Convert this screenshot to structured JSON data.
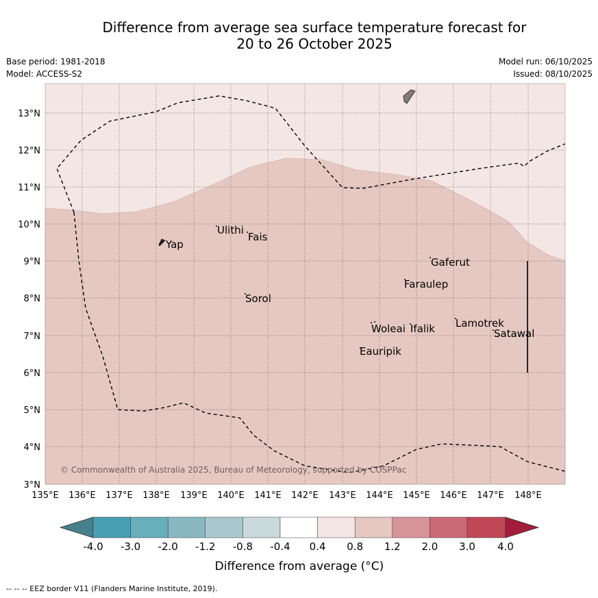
{
  "title_line1": "Difference from average sea surface temperature forecast for",
  "title_line2": "20 to 26 October 2025",
  "meta": {
    "base_period": "Base period: 1981-2018",
    "model": "Model: ACCESS-S2",
    "model_run": "Model run: 06/10/2025",
    "issued": "Issued: 08/10/2025"
  },
  "map": {
    "lon_labels": [
      "135°E",
      "136°E",
      "137°E",
      "138°E",
      "139°E",
      "140°E",
      "141°E",
      "142°E",
      "143°E",
      "144°E",
      "145°E",
      "146°E",
      "147°E",
      "148°E"
    ],
    "lat_labels": [
      "3°N",
      "4°N",
      "5°N",
      "6°N",
      "7°N",
      "8°N",
      "9°N",
      "10°N",
      "11°N",
      "12°N",
      "13°N"
    ],
    "places": {
      "yap": "Yap",
      "ulithi": "Ulithi",
      "fais": "Fais",
      "gaferut": "Gaferut",
      "faraulep": "Faraulep",
      "sorol": "Sorol",
      "lamotrek": "Lamotrek",
      "woleai": "Woleai",
      "ifalik": "Ifalik",
      "satawal": "Satawal",
      "eauripik": "Eauripik"
    },
    "copyright": "© Commonwealth of Australia 2025, Bureau of Meteorology, supported by COSPPac",
    "colors": {
      "anomaly_0_4_to_0_8": "#f4e6e4",
      "anomaly_0_8_to_1_2": "#e6c8c2"
    }
  },
  "colorbar": {
    "ticks": [
      "-4.0",
      "-3.0",
      "-2.0",
      "-1.2",
      "-0.8",
      "-0.4",
      "0.4",
      "0.8",
      "1.2",
      "2.0",
      "3.0",
      "4.0"
    ],
    "label": "Difference from average (°C)",
    "colors": [
      "#477f8a",
      "#47a0b2",
      "#68aebb",
      "#89b8c3",
      "#a9c9ce",
      "#cadadc",
      "#ffffff",
      "#f4e6e4",
      "#e6c8c2",
      "#d6939a",
      "#cb6a76",
      "#c04756",
      "#a51c3a"
    ]
  },
  "footnote": "--  --  -- EEZ border V11 (Flanders Marine Institute, 2019)."
}
